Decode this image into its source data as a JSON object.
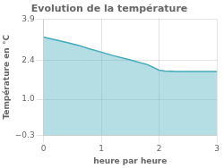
{
  "chart_data": {
    "type": "area",
    "title": "Evolution de la température",
    "xlabel": "heure par heure",
    "ylabel": "Température en °C",
    "x": [
      0,
      0.05,
      0.2,
      0.4,
      0.6,
      0.8,
      1.0,
      1.2,
      1.5,
      1.8,
      2.0,
      2.1,
      2.3,
      2.5,
      2.7,
      3.0
    ],
    "values": [
      3.25,
      3.22,
      3.15,
      3.05,
      2.95,
      2.82,
      2.7,
      2.58,
      2.42,
      2.25,
      2.05,
      2.02,
      2.0,
      2.0,
      2.0,
      2.0
    ],
    "color": "#44aabb",
    "xlim": [
      0,
      3
    ],
    "ylim": [
      -0.3,
      3.9
    ],
    "xticks": [
      0,
      1,
      2,
      3
    ],
    "yticks": [
      {
        "value": -0.3,
        "label": "−0.3"
      },
      {
        "value": 1.0,
        "label": "1.0"
      },
      2.4,
      3.9
    ],
    "grid": true
  }
}
